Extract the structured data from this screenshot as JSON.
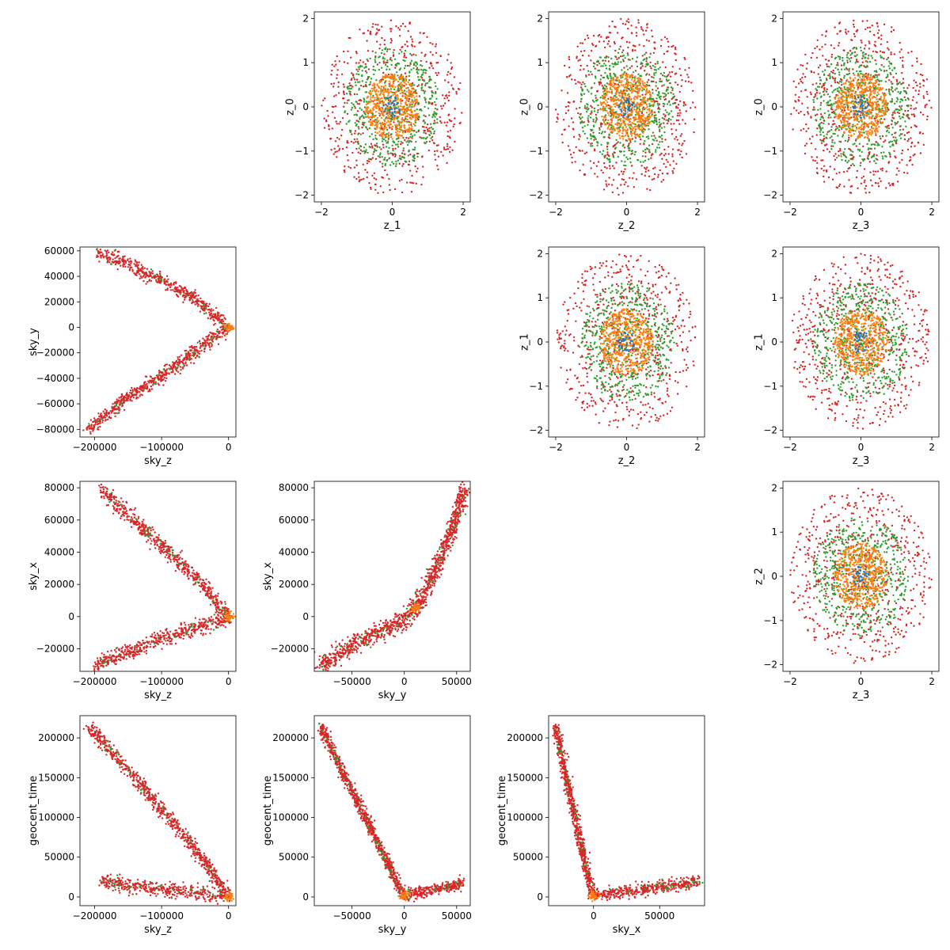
{
  "chart_data": [
    {
      "id": "z1-z0",
      "type": "scatter",
      "pattern": "rings",
      "xlabel": "z_1",
      "ylabel": "z_0",
      "xlim": [
        -2.2,
        2.2
      ],
      "ylim": [
        -2.15,
        2.15
      ],
      "xticks": [
        -2,
        0,
        2
      ],
      "yticks": [
        -2,
        -1,
        0,
        1,
        2
      ],
      "xtick_labels": [
        "−2",
        "0",
        "2"
      ],
      "ytick_labels": [
        "−2",
        "−1",
        "0",
        "1",
        "2"
      ]
    },
    {
      "id": "z2-z0",
      "type": "scatter",
      "pattern": "rings",
      "xlabel": "z_2",
      "ylabel": "z_0",
      "xlim": [
        -2.2,
        2.2
      ],
      "ylim": [
        -2.15,
        2.15
      ],
      "xticks": [
        -2,
        0,
        2
      ],
      "yticks": [
        -2,
        -1,
        0,
        1,
        2
      ],
      "xtick_labels": [
        "−2",
        "0",
        "2"
      ],
      "ytick_labels": [
        "−2",
        "−1",
        "0",
        "1",
        "2"
      ]
    },
    {
      "id": "z3-z0",
      "type": "scatter",
      "pattern": "rings",
      "xlabel": "z_3",
      "ylabel": "z_0",
      "xlim": [
        -2.2,
        2.2
      ],
      "ylim": [
        -2.15,
        2.15
      ],
      "xticks": [
        -2,
        0,
        2
      ],
      "yticks": [
        -2,
        -1,
        0,
        1,
        2
      ],
      "xtick_labels": [
        "−2",
        "0",
        "2"
      ],
      "ytick_labels": [
        "−2",
        "−1",
        "0",
        "1",
        "2"
      ]
    },
    {
      "id": "skyz-skyy",
      "type": "scatter",
      "pattern": "curve",
      "xlabel": "sky_z",
      "ylabel": "sky_y",
      "xlim": [
        -222000,
        11000
      ],
      "ylim": [
        -86000,
        63000
      ],
      "xticks": [
        -200000,
        -100000,
        0
      ],
      "yticks": [
        -80000,
        -60000,
        -40000,
        -20000,
        0,
        20000,
        40000,
        60000
      ],
      "xtick_labels": [
        "−200000",
        "−100000",
        "0"
      ],
      "ytick_labels": [
        "−80000",
        "−60000",
        "−40000",
        "−20000",
        "0",
        "20000",
        "40000",
        "60000"
      ],
      "curve": [
        [
          -210000,
          -80000
        ],
        [
          -150000,
          -55000
        ],
        [
          -100000,
          -38000
        ],
        [
          -50000,
          -19000
        ],
        [
          -10000,
          -3000
        ],
        [
          0,
          0
        ],
        [
          -10000,
          5000
        ],
        [
          -50000,
          22000
        ],
        [
          -100000,
          36000
        ],
        [
          -150000,
          50000
        ],
        [
          -195000,
          58000
        ]
      ],
      "spread": [
        0.02,
        0.03
      ]
    },
    {
      "id": "z2-z1",
      "type": "scatter",
      "pattern": "rings",
      "xlabel": "z_2",
      "ylabel": "z_1",
      "xlim": [
        -2.2,
        2.2
      ],
      "ylim": [
        -2.15,
        2.15
      ],
      "xticks": [
        -2,
        0,
        2
      ],
      "yticks": [
        -2,
        -1,
        0,
        1,
        2
      ],
      "xtick_labels": [
        "−2",
        "0",
        "2"
      ],
      "ytick_labels": [
        "−2",
        "−1",
        "0",
        "1",
        "2"
      ]
    },
    {
      "id": "z3-z1",
      "type": "scatter",
      "pattern": "rings",
      "xlabel": "z_3",
      "ylabel": "z_1",
      "xlim": [
        -2.2,
        2.2
      ],
      "ylim": [
        -2.15,
        2.15
      ],
      "xticks": [
        -2,
        0,
        2
      ],
      "yticks": [
        -2,
        -1,
        0,
        1,
        2
      ],
      "xtick_labels": [
        "−2",
        "0",
        "2"
      ],
      "ytick_labels": [
        "−2",
        "−1",
        "0",
        "1",
        "2"
      ]
    },
    {
      "id": "skyz-skyx",
      "type": "scatter",
      "pattern": "curve",
      "xlabel": "sky_z",
      "ylabel": "sky_x",
      "xlim": [
        -222000,
        11000
      ],
      "ylim": [
        -34000,
        84000
      ],
      "xticks": [
        -200000,
        -100000,
        0
      ],
      "yticks": [
        -20000,
        0,
        20000,
        40000,
        60000,
        80000
      ],
      "xtick_labels": [
        "−200000",
        "−100000",
        "0"
      ],
      "ytick_labels": [
        "−20000",
        "0",
        "20000",
        "40000",
        "60000",
        "80000"
      ],
      "curve": [
        [
          -200000,
          -30000
        ],
        [
          -150000,
          -22000
        ],
        [
          -100000,
          -14000
        ],
        [
          -50000,
          -7000
        ],
        [
          -10000,
          -2000
        ],
        [
          0,
          0
        ],
        [
          -20000,
          10000
        ],
        [
          -50000,
          25000
        ],
        [
          -100000,
          44000
        ],
        [
          -150000,
          63000
        ],
        [
          -190000,
          79000
        ]
      ],
      "spread": [
        0.02,
        0.035
      ]
    },
    {
      "id": "skyy-skyx",
      "type": "scatter",
      "pattern": "curve",
      "xlabel": "sky_y",
      "ylabel": "sky_x",
      "xlim": [
        -86000,
        63000
      ],
      "ylim": [
        -34000,
        84000
      ],
      "xticks": [
        -50000,
        0,
        50000
      ],
      "yticks": [
        -20000,
        0,
        20000,
        40000,
        60000,
        80000
      ],
      "xtick_labels": [
        "−50000",
        "0",
        "50000"
      ],
      "ytick_labels": [
        "−20000",
        "0",
        "20000",
        "40000",
        "60000",
        "80000"
      ],
      "curve": [
        [
          -80000,
          -30000
        ],
        [
          -60000,
          -22000
        ],
        [
          -40000,
          -14000
        ],
        [
          -20000,
          -8000
        ],
        [
          0,
          -2000
        ],
        [
          10000,
          5000
        ],
        [
          20000,
          15000
        ],
        [
          30000,
          30000
        ],
        [
          40000,
          45000
        ],
        [
          50000,
          62000
        ],
        [
          57000,
          79000
        ]
      ],
      "spread": [
        0.03,
        0.04
      ]
    },
    {
      "id": "z3-z2",
      "type": "scatter",
      "pattern": "rings",
      "xlabel": "z_3",
      "ylabel": "z_2",
      "xlim": [
        -2.2,
        2.2
      ],
      "ylim": [
        -2.15,
        2.15
      ],
      "xticks": [
        -2,
        0,
        2
      ],
      "yticks": [
        -2,
        -1,
        0,
        1,
        2
      ],
      "xtick_labels": [
        "−2",
        "0",
        "2"
      ],
      "ytick_labels": [
        "−2",
        "−1",
        "0",
        "1",
        "2"
      ]
    },
    {
      "id": "skyz-geocent",
      "type": "scatter",
      "pattern": "curve",
      "xlabel": "sky_z",
      "ylabel": "geocent_time",
      "xlim": [
        -222000,
        11000
      ],
      "ylim": [
        -11000,
        228000
      ],
      "xticks": [
        -200000,
        -100000,
        0
      ],
      "yticks": [
        0,
        50000,
        100000,
        150000,
        200000
      ],
      "xtick_labels": [
        "−200000",
        "−100000",
        "0"
      ],
      "ytick_labels": [
        "0",
        "50000",
        "100000",
        "150000",
        "200000"
      ],
      "curve": [
        [
          -190000,
          20000
        ],
        [
          -150000,
          15000
        ],
        [
          -100000,
          10000
        ],
        [
          -50000,
          5000
        ],
        [
          -10000,
          2000
        ],
        [
          0,
          0
        ],
        [
          -20000,
          25000
        ],
        [
          -50000,
          60000
        ],
        [
          -100000,
          110000
        ],
        [
          -150000,
          160000
        ],
        [
          -210000,
          215000
        ]
      ],
      "spread": [
        0.025,
        0.03
      ]
    },
    {
      "id": "skyy-geocent",
      "type": "scatter",
      "pattern": "curve",
      "xlabel": "sky_y",
      "ylabel": "geocent_time",
      "xlim": [
        -86000,
        63000
      ],
      "ylim": [
        -11000,
        228000
      ],
      "xticks": [
        -50000,
        0,
        50000
      ],
      "yticks": [
        0,
        50000,
        100000,
        150000,
        200000
      ],
      "xtick_labels": [
        "−50000",
        "0",
        "50000"
      ],
      "ytick_labels": [
        "0",
        "50000",
        "100000",
        "150000",
        "200000"
      ],
      "curve": [
        [
          -80000,
          215000
        ],
        [
          -60000,
          160000
        ],
        [
          -40000,
          108000
        ],
        [
          -20000,
          54000
        ],
        [
          -5000,
          12000
        ],
        [
          0,
          2000
        ],
        [
          10000,
          5000
        ],
        [
          25000,
          8000
        ],
        [
          40000,
          12000
        ],
        [
          50000,
          16000
        ],
        [
          57000,
          20000
        ]
      ],
      "spread": [
        0.02,
        0.025
      ]
    },
    {
      "id": "skyx-geocent",
      "type": "scatter",
      "pattern": "curve",
      "xlabel": "sky_x",
      "ylabel": "geocent_time",
      "xlim": [
        -34000,
        84000
      ],
      "ylim": [
        -11000,
        228000
      ],
      "xticks": [
        0,
        50000
      ],
      "yticks": [
        0,
        50000,
        100000,
        150000,
        200000
      ],
      "xtick_labels": [
        "0",
        "50000"
      ],
      "ytick_labels": [
        "0",
        "50000",
        "100000",
        "150000",
        "200000"
      ],
      "curve": [
        [
          -29000,
          215000
        ],
        [
          -22000,
          160000
        ],
        [
          -15000,
          108000
        ],
        [
          -8000,
          54000
        ],
        [
          -2000,
          8000
        ],
        [
          0,
          2000
        ],
        [
          10000,
          4000
        ],
        [
          30000,
          8000
        ],
        [
          50000,
          13000
        ],
        [
          70000,
          17000
        ],
        [
          80000,
          20000
        ]
      ],
      "spread": [
        0.02,
        0.025
      ]
    }
  ],
  "series_colors": {
    "red": "#d62728",
    "green": "#2ca02c",
    "orange": "#ff7f0e",
    "blue": "#1f77b4"
  },
  "ring_radii": {
    "red_outer": 2.0,
    "green_outer": 1.35,
    "orange_outer": 0.75,
    "blue_outer": 0.25
  }
}
